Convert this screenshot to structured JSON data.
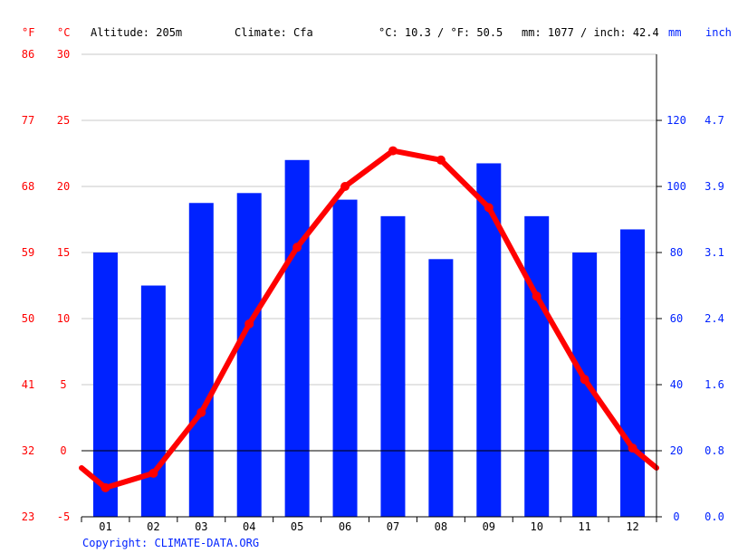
{
  "header": {
    "unit_f": "°F",
    "unit_c": "°C",
    "altitude": "Altitude: 205m",
    "climate": "Climate: Cfa",
    "temp_avg": "°C: 10.3 / °F: 50.5",
    "precip_total": "mm: 1077 / inch: 42.4",
    "unit_mm": "mm",
    "unit_inch": "inch"
  },
  "footer": {
    "copyright": "Copyright: CLIMATE-DATA.ORG"
  },
  "colors": {
    "temperature": "#ff0000",
    "precipitation": "#0022ff",
    "temp_axis": "#ff0000",
    "precip_axis": "#0022ff",
    "grid": "#c8c8c8"
  },
  "chart_data": {
    "type": "bar",
    "categories": [
      "01",
      "02",
      "03",
      "04",
      "05",
      "06",
      "07",
      "08",
      "09",
      "10",
      "11",
      "12"
    ],
    "series": [
      {
        "kind": "bar",
        "axis": "precipitation",
        "unit": "mm",
        "values": [
          80,
          70,
          95,
          98,
          108,
          96,
          91,
          78,
          107,
          91,
          80,
          87
        ]
      },
      {
        "kind": "line",
        "axis": "temperature",
        "unit": "°C",
        "values": [
          -2.8,
          -1.7,
          2.9,
          9.6,
          15.4,
          20.0,
          22.7,
          22.0,
          18.4,
          11.7,
          5.4,
          0.2
        ]
      }
    ],
    "temperature_axis": {
      "ylim": [
        -5,
        30
      ],
      "ticks_c": [
        "-5",
        "0",
        "5",
        "10",
        "15",
        "20",
        "25",
        "30"
      ],
      "ticks_f": [
        "23",
        "32",
        "41",
        "50",
        "59",
        "68",
        "77",
        "86"
      ]
    },
    "precipitation_axis": {
      "ylim": [
        0,
        140
      ],
      "ticks_mm": [
        "0",
        "20",
        "40",
        "60",
        "80",
        "100",
        "120"
      ],
      "ticks_inch": [
        "0.0",
        "0.8",
        "1.6",
        "2.4",
        "3.1",
        "3.9",
        "4.7"
      ]
    },
    "grid": true
  }
}
